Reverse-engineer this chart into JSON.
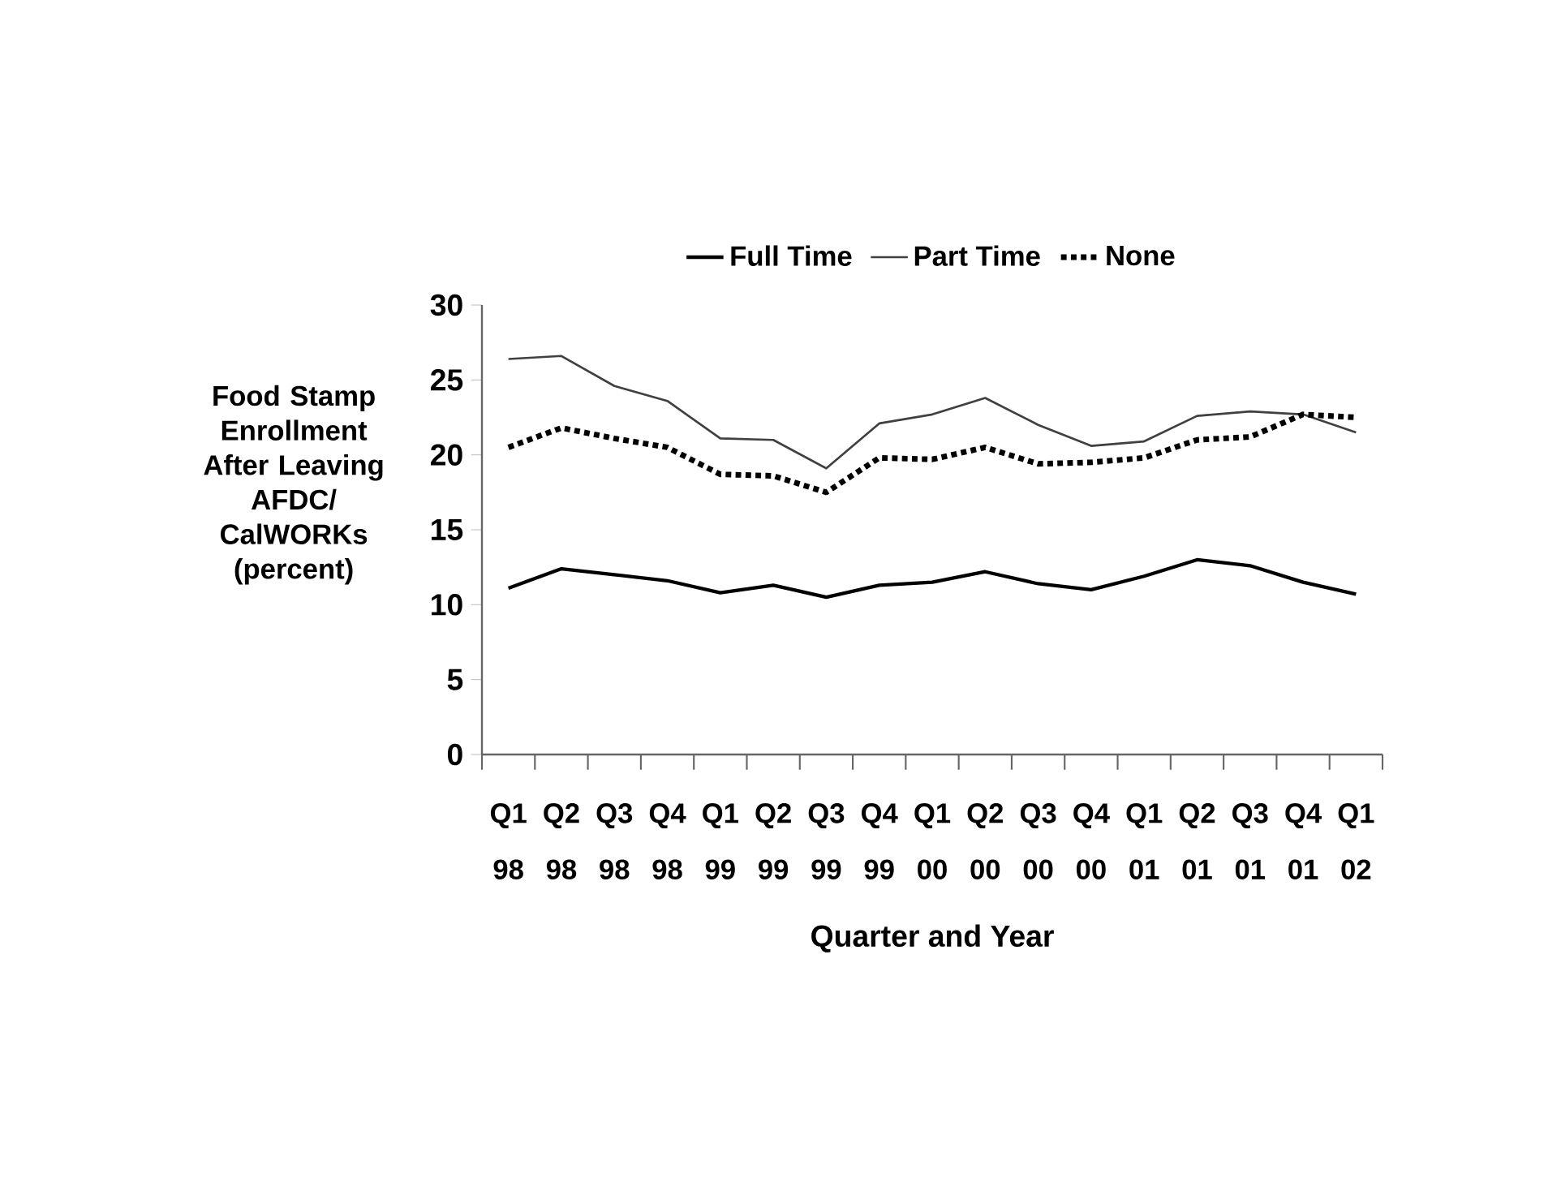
{
  "chart_data": {
    "type": "line",
    "xlabel": "Quarter and Year",
    "ylabel": "Food Stamp Enrollment After Leaving AFDC/ CalWORKs (percent)",
    "categories": [
      "Q1 98",
      "Q2 98",
      "Q3 98",
      "Q4 98",
      "Q1 99",
      "Q2 99",
      "Q3 99",
      "Q4 99",
      "Q1 00",
      "Q2 00",
      "Q3 00",
      "Q4 00",
      "Q1 01",
      "Q2 01",
      "Q3 01",
      "Q4 01",
      "Q1 02"
    ],
    "series": [
      {
        "name": "Full Time",
        "color": "#000000",
        "line_style": "solid",
        "values": [
          11.1,
          12.4,
          12.0,
          11.6,
          10.8,
          11.3,
          10.5,
          11.3,
          11.5,
          12.2,
          11.4,
          11.0,
          11.9,
          13.0,
          12.6,
          11.5,
          10.7
        ]
      },
      {
        "name": "Part Time",
        "color": "#404040",
        "line_style": "solid",
        "values": [
          26.4,
          26.6,
          24.6,
          23.6,
          21.1,
          21.0,
          19.1,
          22.1,
          22.7,
          23.8,
          22.0,
          20.6,
          20.9,
          22.6,
          22.9,
          22.7,
          21.5
        ]
      },
      {
        "name": "None",
        "color": "#000000",
        "line_style": "dotted",
        "values": [
          20.5,
          21.8,
          21.1,
          20.5,
          18.7,
          18.6,
          17.5,
          19.8,
          19.7,
          20.5,
          19.4,
          19.5,
          19.8,
          21.0,
          21.2,
          22.7,
          22.5
        ]
      }
    ],
    "ylim": [
      0,
      30
    ],
    "yticks": [
      0,
      5,
      10,
      15,
      20,
      25,
      30
    ],
    "grid": false,
    "legend": "top",
    "marker": "none"
  }
}
